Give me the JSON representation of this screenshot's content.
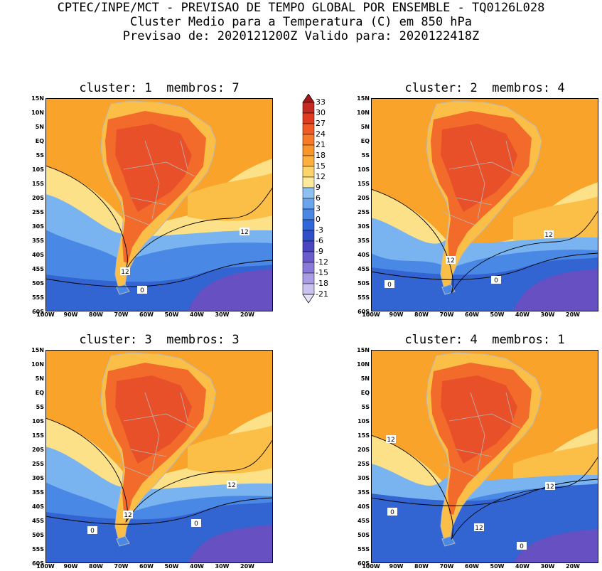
{
  "header": {
    "line1": "CPTEC/INPE/MCT - PREVISAO DE TEMPO GLOBAL POR ENSEMBLE - TQ0126L028",
    "line2": "Cluster Medio para a Temperatura (C) em 850 hPa",
    "line3": "Previsao de: 2020121200Z   Valido para: 2020122418Z"
  },
  "panels": [
    {
      "title": "cluster: 1  membros: 7"
    },
    {
      "title": "cluster: 2  membros: 4"
    },
    {
      "title": "cluster: 3  membros: 3"
    },
    {
      "title": "cluster: 4  membros: 1"
    }
  ],
  "lat_ticks": [
    "15N",
    "10N",
    "5N",
    "EQ",
    "5S",
    "10S",
    "15S",
    "20S",
    "25S",
    "30S",
    "35S",
    "40S",
    "45S",
    "50S",
    "55S",
    "60S"
  ],
  "lon_ticks": [
    "100W",
    "90W",
    "80W",
    "70W",
    "60W",
    "50W",
    "40W",
    "30W",
    "20W"
  ],
  "colorbar": {
    "labels": [
      "33",
      "30",
      "27",
      "24",
      "21",
      "18",
      "15",
      "12",
      "9",
      "6",
      "3",
      "0",
      "-3",
      "-6",
      "-9",
      "-12",
      "-15",
      "-18",
      "-21"
    ],
    "colors": [
      "#a01818",
      "#c42a20",
      "#de3d22",
      "#f05a24",
      "#f77a28",
      "#f9962a",
      "#fdb040",
      "#fdd46a",
      "#fdea9a",
      "#8cc0f0",
      "#6aa4ec",
      "#4a86e4",
      "#2f66d8",
      "#2f4ec8",
      "#4a46c0",
      "#6a5ccc",
      "#8a7ad8",
      "#aa9ce4",
      "#cac2ee"
    ]
  },
  "contour_labels": {
    "twelve": "12",
    "zero": "0"
  },
  "colors": {
    "warm_dark": "#e8502a",
    "warm_mid": "#f26b2a",
    "orange": "#f9a32a",
    "light_orange": "#fbbf48",
    "yellow": "#fde188",
    "light_blue": "#7ab4f0",
    "blue": "#4a88e6",
    "dark_blue": "#3264d2",
    "purple": "#6650c2",
    "land_line": "#b8b8b8"
  }
}
